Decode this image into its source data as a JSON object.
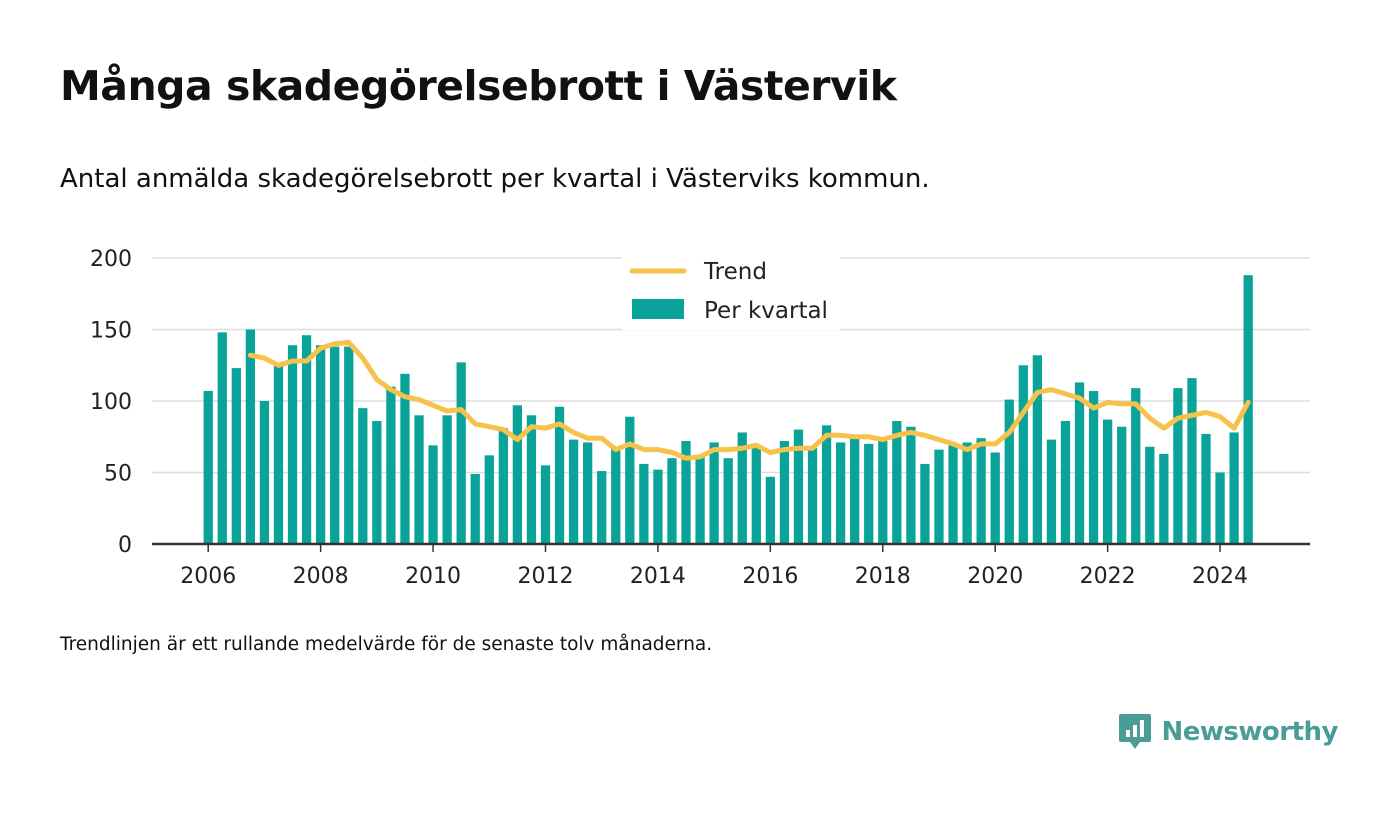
{
  "title": "Många skadegörelsebrott i Västervik",
  "subtitle": "Antal anmälda skadegörelsebrott per kvartal i Västerviks kommun.",
  "note": "Trendlinjen är ett rullande medelvärde för de senaste tolv månaderna.",
  "brand": {
    "name": "Newsworthy",
    "icon": "newsworthy-logo-icon"
  },
  "colors": {
    "bars": "#0aa39a",
    "trend": "#f7c24b",
    "grid": "#dddddd",
    "axis": "#333333",
    "text": "#222222"
  },
  "chart_data": {
    "type": "bar",
    "title": "Många skadegörelsebrott i Västervik",
    "subtitle": "Antal anmälda skadegörelsebrott per kvartal i Västerviks kommun.",
    "ylim": [
      0,
      200
    ],
    "xlim": [
      2005,
      2025.6
    ],
    "y_ticks": [
      0,
      50,
      100,
      150,
      200
    ],
    "x_ticks": [
      "2006",
      "2008",
      "2010",
      "2012",
      "2014",
      "2016",
      "2018",
      "2020",
      "2022",
      "2024"
    ],
    "grid": true,
    "legend_position": "top-center",
    "x_start": 2006.0,
    "x_step": 0.25,
    "series": [
      {
        "name": "Per kvartal",
        "kind": "bar",
        "values": [
          107,
          148,
          123,
          150,
          100,
          126,
          139,
          146,
          139,
          138,
          138,
          95,
          86,
          110,
          119,
          90,
          69,
          90,
          127,
          49,
          62,
          81,
          97,
          90,
          55,
          96,
          73,
          71,
          51,
          68,
          89,
          56,
          52,
          60,
          72,
          61,
          71,
          60,
          78,
          68,
          47,
          72,
          80,
          67,
          83,
          71,
          76,
          70,
          72,
          86,
          82,
          56,
          66,
          69,
          71,
          74,
          64,
          101,
          125,
          132,
          73,
          86,
          113,
          107,
          87,
          82,
          109,
          68,
          63,
          109,
          116,
          77,
          50,
          78,
          188
        ]
      },
      {
        "name": "Trend",
        "kind": "line",
        "values": [
          null,
          null,
          null,
          132,
          130,
          125,
          128,
          128,
          137,
          140,
          141,
          130,
          115,
          108,
          103,
          101,
          97,
          93,
          94,
          84,
          82,
          80,
          73,
          82,
          81,
          84,
          78,
          74,
          74,
          66,
          70,
          66,
          66,
          64,
          60,
          61,
          66,
          66,
          67,
          69,
          64,
          66,
          67,
          67,
          76,
          76,
          75,
          75,
          73,
          76,
          78,
          76,
          73,
          70,
          66,
          70,
          70,
          78,
          92,
          106,
          108,
          105,
          102,
          95,
          99,
          98,
          98,
          88,
          81,
          88,
          90,
          92,
          89,
          81,
          99
        ]
      }
    ]
  }
}
